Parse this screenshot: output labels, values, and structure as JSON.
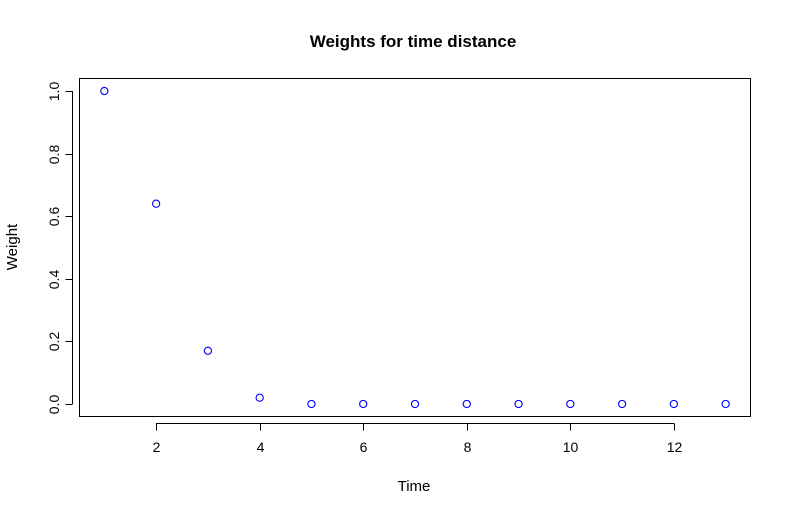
{
  "chart_data": {
    "type": "scatter",
    "title": "Weights for time distance",
    "xlabel": "Time",
    "ylabel": "Weight",
    "x": [
      1,
      2,
      3,
      4,
      5,
      6,
      7,
      8,
      9,
      10,
      11,
      12,
      13
    ],
    "y": [
      1.0,
      0.64,
      0.17,
      0.02,
      0.0,
      0.0,
      0.0,
      0.0,
      0.0,
      0.0,
      0.0,
      0.0,
      0.0
    ],
    "xlim": [
      0.52,
      13.48
    ],
    "ylim": [
      -0.04,
      1.04
    ],
    "xticks": [
      2,
      4,
      6,
      8,
      10,
      12
    ],
    "xtick_labels": [
      "2",
      "4",
      "6",
      "8",
      "10",
      "12"
    ],
    "yticks": [
      0.0,
      0.2,
      0.4,
      0.6,
      0.8,
      1.0
    ],
    "ytick_labels": [
      "0.0",
      "0.2",
      "0.4",
      "0.6",
      "0.8",
      "1.0"
    ],
    "point_color": "#0000ff",
    "marker": "open-circle",
    "grid": false,
    "legend": "none"
  }
}
